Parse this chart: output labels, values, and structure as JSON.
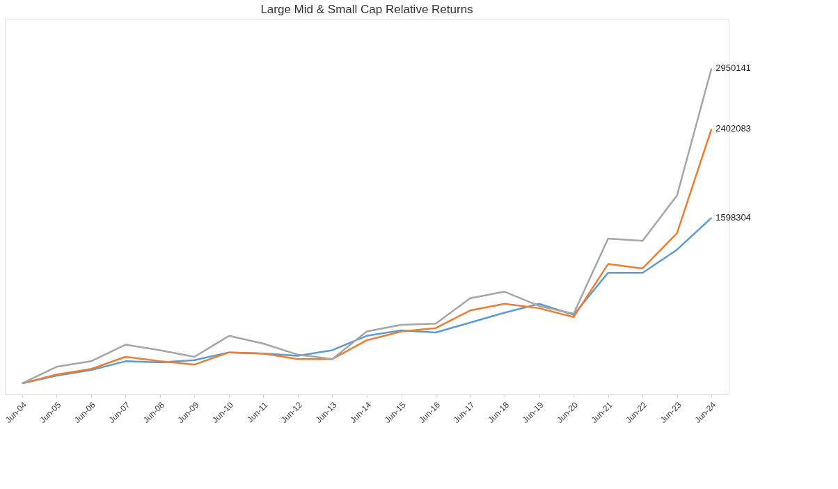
{
  "chart_data": {
    "type": "line",
    "title": "Large Mid & Small Cap Relative Returns",
    "categories": [
      "Jun-04",
      "Jun-05",
      "Jun-06",
      "Jun-07",
      "Jun-08",
      "Jun-09",
      "Jun-10",
      "Jun-11",
      "Jun-12",
      "Jun-13",
      "Jun-14",
      "Jun-15",
      "Jun-16",
      "Jun-17",
      "Jun-18",
      "Jun-19",
      "Jun-20",
      "Jun-21",
      "Jun-22",
      "Jun-23",
      "Jun-24"
    ],
    "series": [
      {
        "color": "#5b9bd5",
        "values": [
          100000,
          170000,
          220000,
          300000,
          290000,
          310000,
          380000,
          370000,
          350000,
          400000,
          530000,
          580000,
          560000,
          650000,
          740000,
          820000,
          720000,
          1100000,
          1100000,
          1310000,
          1598304
        ],
        "value_labels": [
          null,
          null,
          null,
          null,
          null,
          null,
          null,
          null,
          null,
          null,
          null,
          null,
          null,
          null,
          null,
          null,
          null,
          null,
          null,
          null,
          "1598304"
        ]
      },
      {
        "color": "#ed7d31",
        "values": [
          100000,
          180000,
          230000,
          340000,
          300000,
          270000,
          380000,
          370000,
          320000,
          320000,
          490000,
          570000,
          600000,
          760000,
          820000,
          780000,
          700000,
          1180000,
          1140000,
          1460000,
          2402083
        ],
        "value_labels": [
          null,
          null,
          null,
          null,
          null,
          null,
          null,
          null,
          null,
          null,
          null,
          null,
          null,
          null,
          null,
          null,
          null,
          null,
          null,
          null,
          "2402083"
        ]
      },
      {
        "color": "#a5a5a5",
        "values": [
          100000,
          250000,
          300000,
          450000,
          400000,
          340000,
          530000,
          460000,
          360000,
          320000,
          570000,
          630000,
          640000,
          870000,
          930000,
          800000,
          730000,
          1410000,
          1390000,
          1800000,
          2950141
        ],
        "value_labels": [
          null,
          null,
          null,
          null,
          null,
          null,
          null,
          null,
          null,
          null,
          null,
          null,
          null,
          null,
          null,
          null,
          null,
          null,
          null,
          null,
          "2950141"
        ]
      }
    ],
    "ylim": [
      0,
      3400000
    ],
    "tick_labels": "x",
    "grid": false,
    "legend": false,
    "marker": "none",
    "line_style": "solid"
  }
}
